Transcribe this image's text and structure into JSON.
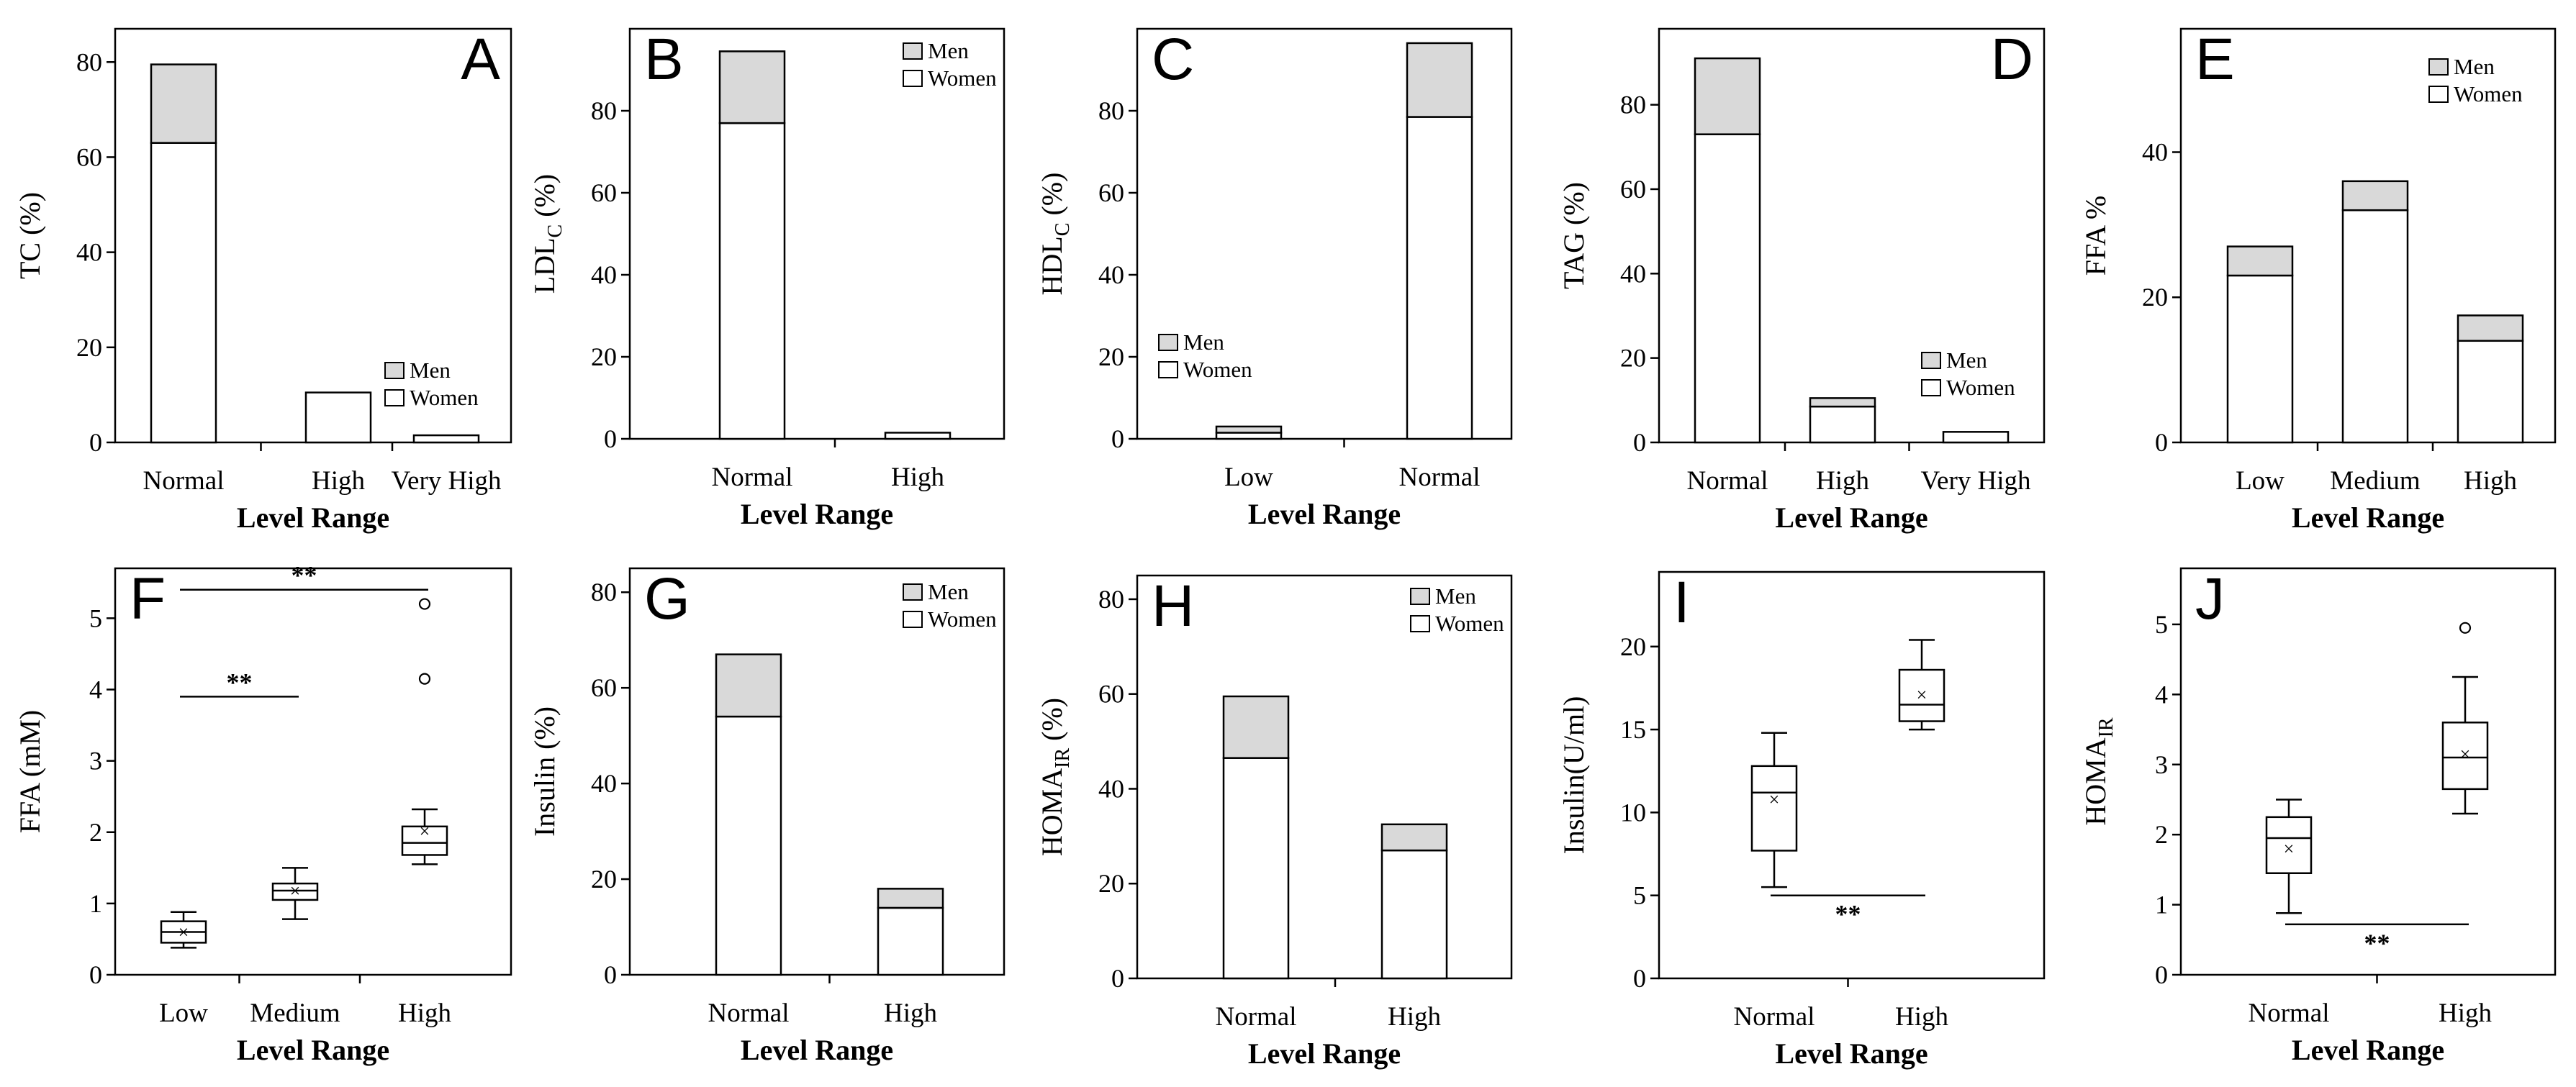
{
  "colors": {
    "men": "#d9d9d9",
    "women": "#ffffff",
    "stroke": "#000000"
  },
  "chart_data": [
    {
      "id": "A",
      "type": "bar",
      "stacked": true,
      "letter": "A",
      "ylabel": "TC (%)",
      "ylabel_main": "TC",
      "ylabel_sub": "",
      "ylabel_tail": " (%)",
      "xlabel": "Level Range",
      "ylim": [
        0,
        87
      ],
      "yticks": [
        0,
        20,
        40,
        60,
        80
      ],
      "categories": [
        "Normal",
        "High",
        "Very High"
      ],
      "series": [
        {
          "name": "Women",
          "values": [
            63,
            10.5,
            1.5
          ]
        },
        {
          "name": "Men",
          "values": [
            16.5,
            0,
            0
          ]
        }
      ],
      "legend": [
        "Men",
        "Women"
      ],
      "legend_position": "bottom-right"
    },
    {
      "id": "B",
      "type": "bar",
      "stacked": true,
      "letter": "B",
      "ylabel": "LDLC (%)",
      "ylabel_main": "LDL",
      "ylabel_sub": "C",
      "ylabel_tail": " (%)",
      "xlabel": "Level Range",
      "ylim": [
        0,
        100
      ],
      "yticks": [
        0,
        20,
        40,
        60,
        80
      ],
      "categories": [
        "Normal",
        "High"
      ],
      "series": [
        {
          "name": "Women",
          "values": [
            77,
            1.5
          ]
        },
        {
          "name": "Men",
          "values": [
            17.5,
            0
          ]
        }
      ],
      "legend": [
        "Men",
        "Women"
      ],
      "legend_position": "top-right"
    },
    {
      "id": "C",
      "type": "bar",
      "stacked": true,
      "letter": "C",
      "ylabel": "HDLC (%)",
      "ylabel_main": "HDL",
      "ylabel_sub": "C",
      "ylabel_tail": " (%)",
      "xlabel": "Level Range",
      "ylim": [
        0,
        100
      ],
      "yticks": [
        0,
        20,
        40,
        60,
        80
      ],
      "categories": [
        "Low",
        "Normal"
      ],
      "series": [
        {
          "name": "Women",
          "values": [
            1.5,
            78.5
          ]
        },
        {
          "name": "Men",
          "values": [
            1.5,
            18
          ]
        }
      ],
      "legend": [
        "Men",
        "Women"
      ],
      "legend_position": "bottom-left"
    },
    {
      "id": "D",
      "type": "bar",
      "stacked": true,
      "letter": "D",
      "ylabel": "TAG (%)",
      "ylabel_main": "TAG",
      "ylabel_sub": "",
      "ylabel_tail": " (%)",
      "xlabel": "Level Range",
      "ylim": [
        0,
        98
      ],
      "yticks": [
        0,
        20,
        40,
        60,
        80
      ],
      "categories": [
        "Normal",
        "High",
        "Very High"
      ],
      "series": [
        {
          "name": "Women",
          "values": [
            73,
            8.5,
            2.5
          ]
        },
        {
          "name": "Men",
          "values": [
            18,
            2,
            0
          ]
        }
      ],
      "legend": [
        "Men",
        "Women"
      ],
      "legend_position": "bottom-right"
    },
    {
      "id": "E",
      "type": "bar",
      "stacked": true,
      "letter": "E",
      "ylabel": "FFA %",
      "ylabel_main": "FFA %",
      "ylabel_sub": "",
      "ylabel_tail": "",
      "xlabel": "Level Range",
      "ylim": [
        0,
        57
      ],
      "yticks": [
        0,
        20,
        40
      ],
      "categories": [
        "Low",
        "Medium",
        "High"
      ],
      "series": [
        {
          "name": "Women",
          "values": [
            23,
            32,
            14
          ]
        },
        {
          "name": "Men",
          "values": [
            4,
            4,
            3.5
          ]
        }
      ],
      "legend": [
        "Men",
        "Women"
      ],
      "legend_position": "top-right"
    },
    {
      "id": "F",
      "type": "box",
      "letter": "F",
      "ylabel": "FFA (mM)",
      "ylabel_main": "FFA (mM)",
      "ylabel_sub": "",
      "ylabel_tail": "",
      "xlabel": "Level Range",
      "ylim": [
        0,
        5.7
      ],
      "yticks": [
        0,
        1,
        2,
        3,
        4,
        5
      ],
      "categories": [
        "Low",
        "Medium",
        "High"
      ],
      "boxes": [
        {
          "whisker_low": 0.38,
          "q1": 0.45,
          "median": 0.6,
          "q3": 0.75,
          "whisker_high": 0.88,
          "mean": 0.6,
          "outliers": []
        },
        {
          "whisker_low": 0.78,
          "q1": 1.05,
          "median": 1.18,
          "q3": 1.28,
          "whisker_high": 1.5,
          "mean": 1.18,
          "outliers": []
        },
        {
          "whisker_low": 1.55,
          "q1": 1.68,
          "median": 1.85,
          "q3": 2.08,
          "whisker_high": 2.32,
          "mean": 2.02,
          "outliers": [
            4.15,
            5.2
          ]
        }
      ],
      "significance": [
        {
          "from": "Low",
          "to": "High",
          "y": 5.4,
          "label": "**"
        },
        {
          "from": "Low",
          "to": "Medium",
          "y": 3.9,
          "label": "**"
        }
      ]
    },
    {
      "id": "G",
      "type": "bar",
      "stacked": true,
      "letter": "G",
      "ylabel": "Insulin (%)",
      "ylabel_main": "Insulin (%)",
      "ylabel_sub": "",
      "ylabel_tail": "",
      "xlabel": "Level Range",
      "ylim": [
        0,
        85
      ],
      "yticks": [
        0,
        20,
        40,
        60,
        80
      ],
      "categories": [
        "Normal",
        "High"
      ],
      "series": [
        {
          "name": "Women",
          "values": [
            54,
            14
          ]
        },
        {
          "name": "Men",
          "values": [
            13,
            4
          ]
        }
      ],
      "legend": [
        "Men",
        "Women"
      ],
      "legend_position": "top-right"
    },
    {
      "id": "H",
      "type": "bar",
      "stacked": true,
      "letter": "H",
      "ylabel": "HOMAIR (%)",
      "ylabel_main": "HOMA",
      "ylabel_sub": "IR",
      "ylabel_tail": " (%)",
      "xlabel": "Level Range",
      "ylim": [
        0,
        85
      ],
      "yticks": [
        0,
        20,
        40,
        60,
        80
      ],
      "categories": [
        "Normal",
        "High"
      ],
      "series": [
        {
          "name": "Women",
          "values": [
            46.5,
            27
          ]
        },
        {
          "name": "Men",
          "values": [
            13,
            5.5
          ]
        }
      ],
      "legend": [
        "Men",
        "Women"
      ],
      "legend_position": "top-right"
    },
    {
      "id": "I",
      "type": "box",
      "letter": "I",
      "ylabel": "Insulin(U/ml)",
      "ylabel_main": "Insulin(U/ml)",
      "ylabel_sub": "",
      "ylabel_tail": "",
      "xlabel": "Level Range",
      "ylim": [
        0,
        24.5
      ],
      "yticks": [
        0,
        5,
        10,
        15,
        20
      ],
      "categories": [
        "Normal",
        "High"
      ],
      "boxes": [
        {
          "whisker_low": 5.5,
          "q1": 7.7,
          "median": 11.2,
          "q3": 12.8,
          "whisker_high": 14.8,
          "mean": 10.8,
          "outliers": []
        },
        {
          "whisker_low": 15.0,
          "q1": 15.5,
          "median": 16.5,
          "q3": 18.6,
          "whisker_high": 20.4,
          "mean": 17.1,
          "outliers": []
        }
      ],
      "significance": [
        {
          "from": "Normal",
          "to": "High",
          "y": 5.0,
          "label": "**",
          "label_below": true
        }
      ]
    },
    {
      "id": "J",
      "type": "box",
      "letter": "J",
      "ylabel": "HOMAIR",
      "ylabel_main": "HOMA",
      "ylabel_sub": "IR",
      "ylabel_tail": "",
      "xlabel": "Level Range",
      "ylim": [
        0,
        5.8
      ],
      "yticks": [
        0,
        1,
        2,
        3,
        4,
        5
      ],
      "categories": [
        "Normal",
        "High"
      ],
      "boxes": [
        {
          "whisker_low": 0.88,
          "q1": 1.45,
          "median": 1.95,
          "q3": 2.25,
          "whisker_high": 2.5,
          "mean": 1.8,
          "outliers": []
        },
        {
          "whisker_low": 2.3,
          "q1": 2.65,
          "median": 3.1,
          "q3": 3.6,
          "whisker_high": 4.25,
          "mean": 3.15,
          "outliers": [
            4.95
          ]
        }
      ],
      "significance": [
        {
          "from": "Normal",
          "to": "High",
          "y": 0.72,
          "label": "**",
          "label_below": true
        }
      ]
    }
  ]
}
